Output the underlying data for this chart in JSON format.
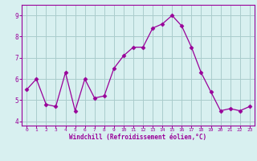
{
  "x": [
    0,
    1,
    2,
    3,
    4,
    5,
    6,
    7,
    8,
    9,
    10,
    11,
    12,
    13,
    14,
    15,
    16,
    17,
    18,
    19,
    20,
    21,
    22,
    23
  ],
  "y": [
    5.5,
    6.0,
    4.8,
    4.7,
    6.3,
    4.5,
    6.0,
    5.1,
    5.2,
    6.5,
    7.1,
    7.5,
    7.5,
    8.4,
    8.6,
    9.0,
    8.5,
    7.5,
    6.3,
    5.4,
    4.5,
    4.6,
    4.5,
    4.7
  ],
  "line_color": "#990099",
  "marker": "D",
  "marker_size": 2.5,
  "bg_color": "#d8f0f0",
  "grid_color": "#aacccc",
  "xlabel": "Windchill (Refroidissement éolien,°C)",
  "xlabel_color": "#990099",
  "tick_color": "#990099",
  "axis_color": "#990099",
  "ylim": [
    3.8,
    9.5
  ],
  "xlim": [
    -0.5,
    23.5
  ],
  "yticks": [
    4,
    5,
    6,
    7,
    8,
    9
  ],
  "xticks": [
    0,
    1,
    2,
    3,
    4,
    5,
    6,
    7,
    8,
    9,
    10,
    11,
    12,
    13,
    14,
    15,
    16,
    17,
    18,
    19,
    20,
    21,
    22,
    23
  ]
}
